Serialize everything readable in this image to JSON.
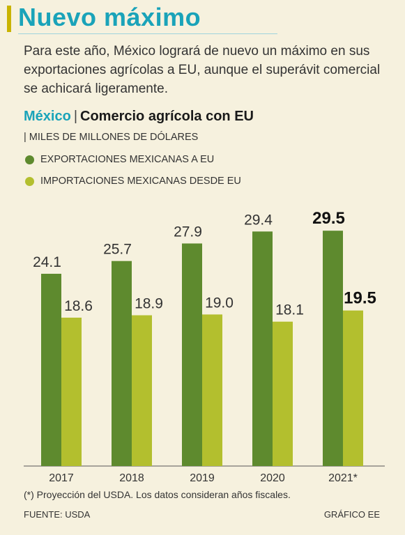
{
  "header": {
    "title": "Nuevo máximo",
    "intro": "Para este año, México logrará de nuevo un máximo en sus exportaciones agrícolas a EU, aunque el superávit comercial se achicará ligeramente."
  },
  "chart_heading": {
    "country": "México",
    "separator": "|",
    "title": "Comercio agrícola con EU",
    "units": "| MILES DE MILLONES DE DÓLARES"
  },
  "footer": {
    "note": "(*) Proyección del USDA. Los datos consideran años fiscales.",
    "source": "FUENTE: USDA",
    "credit": "GRÁFICO EE"
  },
  "colors": {
    "exports": "#5e8a2e",
    "imports": "#b3bf2e",
    "accent": "#1aa3b9"
  },
  "chart_data": {
    "type": "bar",
    "categories": [
      "2017",
      "2018",
      "2019",
      "2020",
      "2021*"
    ],
    "series": [
      {
        "name": "EXPORTACIONES MEXICANAS A EU",
        "values": [
          24.1,
          25.7,
          27.9,
          29.4,
          29.5
        ],
        "labels": [
          "24.1",
          "25.7",
          "27.9",
          "29.4",
          "29.5"
        ]
      },
      {
        "name": "IMPORTACIONES MEXICANAS DESDE EU",
        "values": [
          18.6,
          18.9,
          19.0,
          18.1,
          19.5
        ],
        "labels": [
          "18.6",
          "18.9",
          "19.0",
          "18.1",
          "19.5"
        ]
      }
    ],
    "ylim": [
      0,
      31
    ],
    "highlight_category": "2021*",
    "grid": false,
    "legend_position": "top-left"
  }
}
